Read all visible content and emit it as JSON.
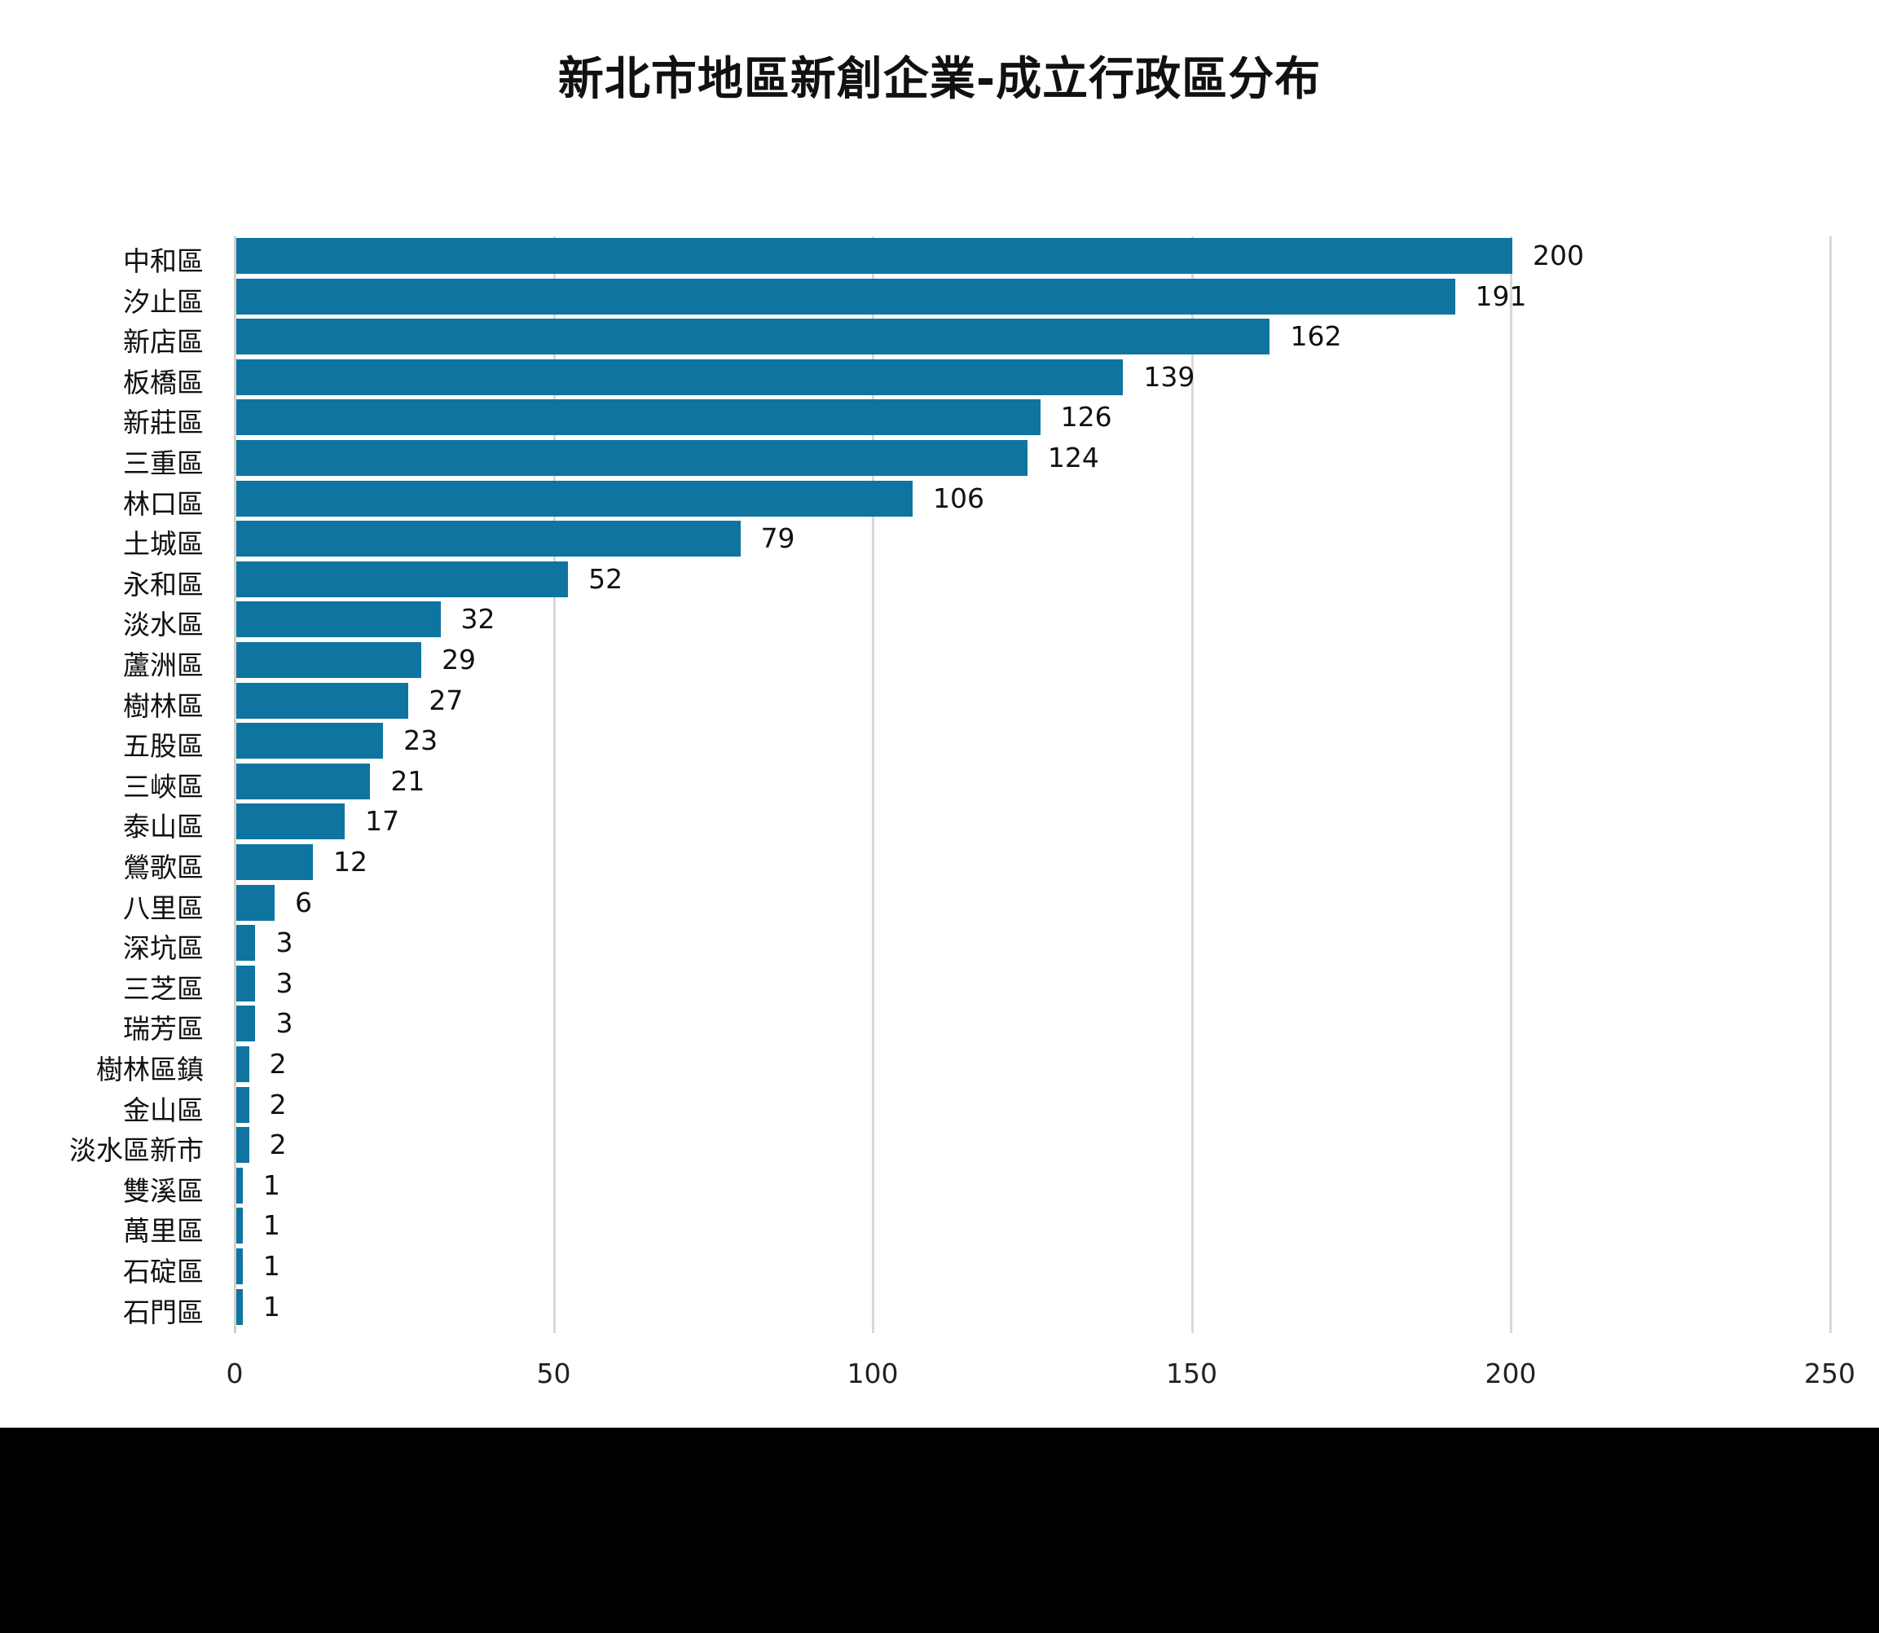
{
  "chart_data": {
    "type": "bar",
    "orientation": "horizontal",
    "title": "新北市地區新創企業-成立行政區分布",
    "xlabel": "",
    "ylabel": "",
    "xlim": [
      0,
      250
    ],
    "x_ticks": [
      "0",
      "50",
      "100",
      "150",
      "200",
      "250"
    ],
    "grid": true,
    "legend": null,
    "bar_color": "#0f75a0",
    "categories": [
      "中和區",
      "汐止區",
      "新店區",
      "板橋區",
      "新莊區",
      "三重區",
      "林口區",
      "土城區",
      "永和區",
      "淡水區",
      "蘆洲區",
      "樹林區",
      "五股區",
      "三峽區",
      "泰山區",
      "鶯歌區",
      "八里區",
      "深坑區",
      "三芝區",
      "瑞芳區",
      "樹林區鎮",
      "金山區",
      "淡水區新市",
      "雙溪區",
      "萬里區",
      "石碇區",
      "石門區"
    ],
    "values": [
      200,
      191,
      162,
      139,
      126,
      124,
      106,
      79,
      52,
      32,
      29,
      27,
      23,
      21,
      17,
      12,
      6,
      3,
      3,
      3,
      2,
      2,
      2,
      1,
      1,
      1,
      1
    ],
    "data_labels": [
      "200",
      "191",
      "162",
      "139",
      "126",
      "124",
      "106",
      "79",
      "52",
      "32",
      "29",
      "27",
      "23",
      "21",
      "17",
      "12",
      "6",
      "3",
      "3",
      "3",
      "2",
      "2",
      "2",
      "1",
      "1",
      "1",
      "1"
    ]
  }
}
